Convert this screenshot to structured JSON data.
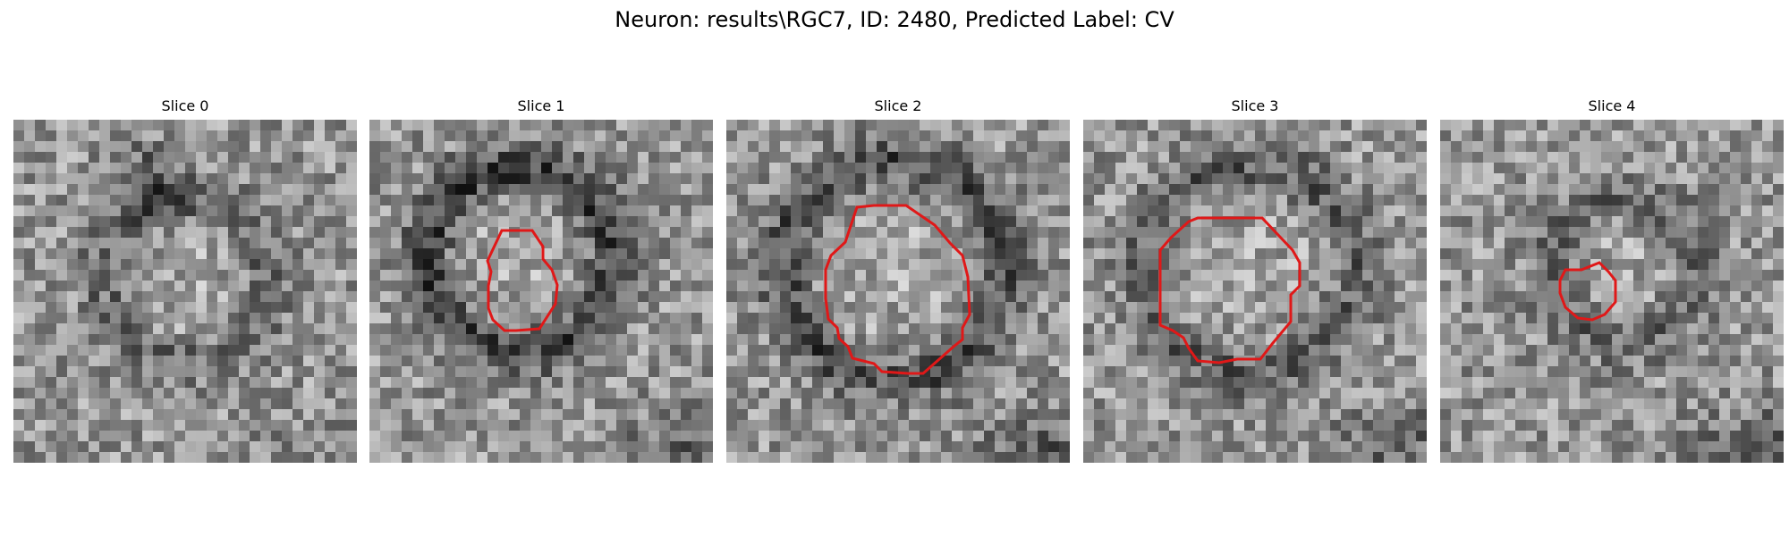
{
  "figure": {
    "title": "Neuron: results\\RGC7, ID: 2480, Predicted Label: CV"
  },
  "style": {
    "contour_color": "#e01818"
  },
  "panels": [
    {
      "title": "Slice 0",
      "has_contour": false
    },
    {
      "title": "Slice 1",
      "has_contour": true
    },
    {
      "title": "Slice 2",
      "has_contour": true
    },
    {
      "title": "Slice 3",
      "has_contour": true
    },
    {
      "title": "Slice 4",
      "has_contour": true
    }
  ]
}
